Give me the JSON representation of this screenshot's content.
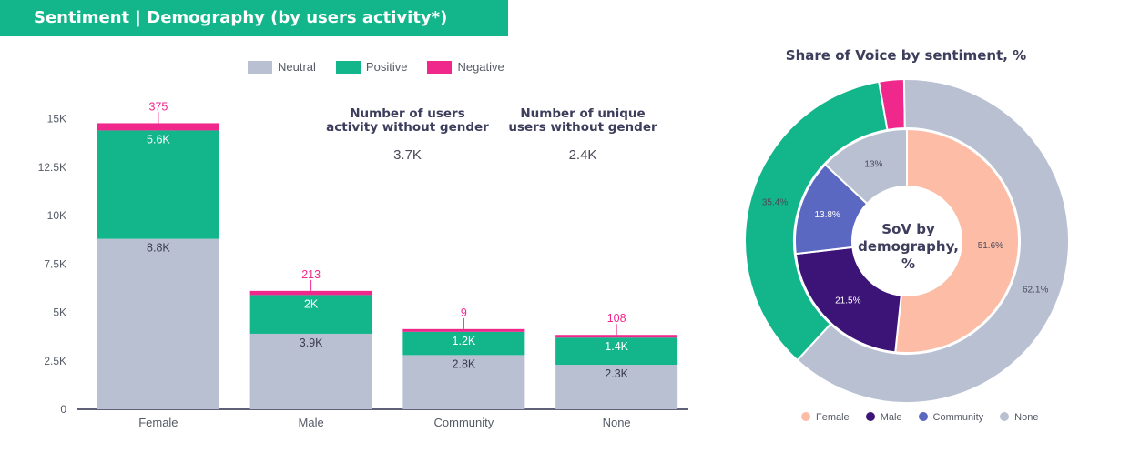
{
  "header": {
    "title": "Sentiment | Demography (by users activity*)"
  },
  "colors": {
    "neutral": "#b8c0d2",
    "positive": "#13b68a",
    "negative": "#f0288c",
    "female": "#fdbca5",
    "male": "#3c1478",
    "community": "#5b68c2",
    "none": "#b8c0d2"
  },
  "legend": {
    "neutral": "Neutral",
    "positive": "Positive",
    "negative": "Negative"
  },
  "stats": [
    {
      "label_line1": "Number of users",
      "label_line2": "activity without gender",
      "value": "3.7K"
    },
    {
      "label_line1": "Number of unique",
      "label_line2": "users without gender",
      "value": "2.4K"
    }
  ],
  "donut": {
    "title": "Share of Voice by sentiment, %",
    "center_line1": "SoV by",
    "center_line2": "demography,",
    "center_line3": "%",
    "legend": [
      "Female",
      "Male",
      "Community",
      "None"
    ]
  },
  "chart_data": [
    {
      "type": "bar",
      "stacked": true,
      "categories": [
        "Female",
        "Male",
        "Community",
        "None"
      ],
      "series": [
        {
          "name": "Neutral",
          "values": [
            8800,
            3900,
            2800,
            2300
          ],
          "labels": [
            "8.8K",
            "3.9K",
            "2.8K",
            "2.3K"
          ]
        },
        {
          "name": "Positive",
          "values": [
            5600,
            2000,
            1200,
            1400
          ],
          "labels": [
            "5.6K",
            "2K",
            "1.2K",
            "1.4K"
          ]
        },
        {
          "name": "Negative",
          "values": [
            375,
            213,
            9,
            108
          ],
          "labels": [
            "375",
            "213",
            "9",
            "108"
          ]
        }
      ],
      "yticks": [
        "0",
        "2.5K",
        "5K",
        "7.5K",
        "10K",
        "12.5K",
        "15K"
      ],
      "ytick_values": [
        0,
        2500,
        5000,
        7500,
        10000,
        12500,
        15000
      ],
      "ylim": [
        0,
        15500
      ],
      "legend_position": "top"
    },
    {
      "type": "pie",
      "title": "Share of Voice by sentiment, %",
      "outer_ring": [
        {
          "name": "Negative",
          "value": 2.5
        },
        {
          "name": "None",
          "value": 62.1,
          "label": "62.1%"
        },
        {
          "name": "Positive",
          "value": 35.4,
          "label": "35.4%"
        }
      ],
      "inner_ring": [
        {
          "name": "Female",
          "value": 51.6,
          "label": "51.6%"
        },
        {
          "name": "Male",
          "value": 21.5,
          "label": "21.5%"
        },
        {
          "name": "Community",
          "value": 13.8,
          "label": "13.8%"
        },
        {
          "name": "None",
          "value": 13.0,
          "label": "13%"
        }
      ],
      "legend_position": "bottom"
    }
  ]
}
